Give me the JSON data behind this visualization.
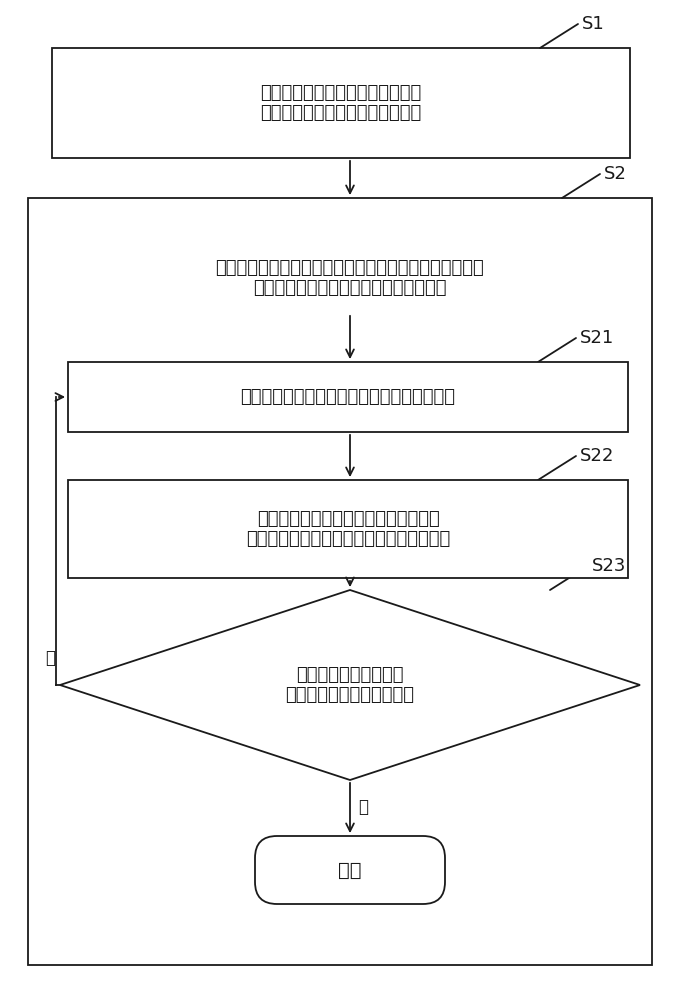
{
  "bg_color": "#ffffff",
  "edge_color": "#1a1a1a",
  "face_color": "#ffffff",
  "arrow_color": "#1a1a1a",
  "text_color": "#1a1a1a",
  "s1_label": "S1",
  "s2_label": "S2",
  "s21_label": "S21",
  "s22_label": "S22",
  "s23_label": "S23",
  "box1_text": "获取系统环境中需要的配置信息，\n根据所述配置信息初始化测试变量",
  "box2_text": "根据测试命令生成多个测试队列，同时对每个所述测试队\n列执行以下步骤，以获取性能压测结果：",
  "box3_text": "将所述测试队列中的操作请求转移到操作队列",
  "box4_text": "执行所述操作队列中的所述操作请求，\n并将完成的操作请求从所述操作队列中删除",
  "diamond_text": "当所述操作队列为空，\n判断所述测试队列是否为空",
  "end_text": "结束",
  "yes_label": "是",
  "no_label": "否",
  "font_size": 13,
  "small_font_size": 12,
  "label_font_size": 13
}
